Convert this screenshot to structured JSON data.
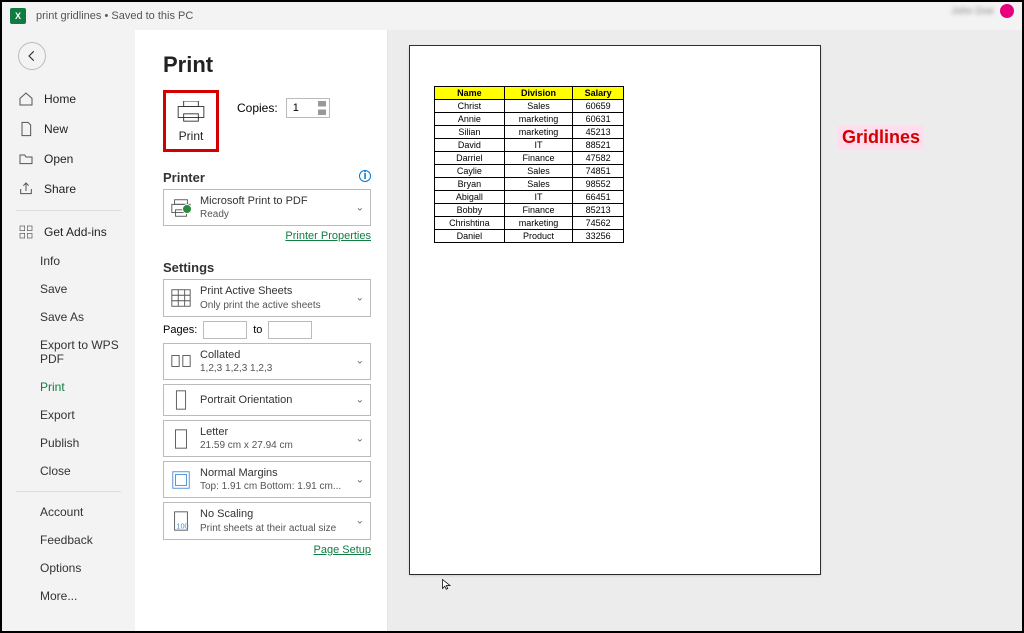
{
  "titlebar": {
    "text": "print gridlines • Saved to this PC"
  },
  "topright": {
    "blurred": "_____"
  },
  "sidebar": {
    "items": [
      {
        "icon": "home",
        "label": "Home"
      },
      {
        "icon": "new",
        "label": "New"
      },
      {
        "icon": "open",
        "label": "Open"
      },
      {
        "icon": "share",
        "label": "Share"
      }
    ],
    "addins_label": "Get Add-ins",
    "secondary": [
      "Info",
      "Save",
      "Save As",
      "Export to WPS PDF",
      "Print",
      "Export",
      "Publish",
      "Close"
    ],
    "footer": [
      "Account",
      "Feedback",
      "Options",
      "More..."
    ],
    "selected": "Print"
  },
  "print": {
    "heading": "Print",
    "print_label": "Print",
    "copies_label": "Copies:",
    "copies_value": "1",
    "printer_heading": "Printer",
    "printer_name": "Microsoft Print to PDF",
    "printer_status": "Ready",
    "printer_props": "Printer Properties",
    "settings_heading": "Settings",
    "settings": [
      {
        "t1": "Print Active Sheets",
        "t2": "Only print the active sheets",
        "icon": "sheets"
      },
      {
        "pages_label": "Pages:",
        "to_label": "to"
      },
      {
        "t1": "Collated",
        "t2": "1,2,3    1,2,3    1,2,3",
        "icon": "collated"
      },
      {
        "t1": "Portrait Orientation",
        "t2": "",
        "icon": "portrait"
      },
      {
        "t1": "Letter",
        "t2": "21.59 cm x 27.94 cm",
        "icon": "letter"
      },
      {
        "t1": "Normal Margins",
        "t2": "Top: 1.91 cm Bottom: 1.91 cm...",
        "icon": "margins"
      },
      {
        "t1": "No Scaling",
        "t2": "Print sheets at their actual size",
        "icon": "scaling"
      }
    ],
    "page_setup": "Page Setup"
  },
  "preview": {
    "annotation": "Gridlines",
    "annotation_color": "#d40000",
    "table": {
      "header_bg": "#ffff00",
      "columns": [
        "Name",
        "Division",
        "Salary"
      ],
      "rows": [
        [
          "Christ",
          "Sales",
          "60659"
        ],
        [
          "Annie",
          "marketing",
          "60631"
        ],
        [
          "Silian",
          "marketing",
          "45213"
        ],
        [
          "David",
          "IT",
          "88521"
        ],
        [
          "Darriel",
          "Finance",
          "47582"
        ],
        [
          "Caylie",
          "Sales",
          "74851"
        ],
        [
          "Bryan",
          "Sales",
          "98552"
        ],
        [
          "Abigall",
          "IT",
          "66451"
        ],
        [
          "Bobby",
          "Finance",
          "85213"
        ],
        [
          "Chrishtina",
          "marketing",
          "74562"
        ],
        [
          "Daniel",
          "Product",
          "33256"
        ]
      ]
    }
  }
}
